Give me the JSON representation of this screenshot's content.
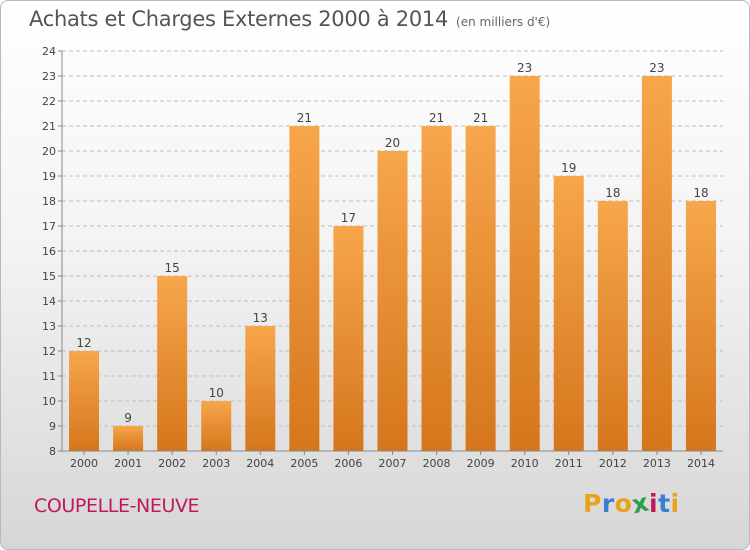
{
  "header": {
    "title": "Achats et Charges Externes 2000 à 2014",
    "subtitle": "(en milliers d'€)"
  },
  "footer": {
    "city": "COUPELLE-NEUVE",
    "brand": "Proxiti",
    "brand_letters": [
      "P",
      "r",
      "o",
      "x",
      "i",
      "t",
      "i"
    ],
    "brand_colors": [
      "#e8a317",
      "#3a7fd5",
      "#e8a317",
      "#2e9e4f",
      "#c2185b",
      "#3a7fd5",
      "#e8a317"
    ]
  },
  "colors": {
    "bar_top": "#f7a64c",
    "bar_bottom": "#d5761c",
    "grid": "#bdbdbd",
    "axis": "#888888",
    "title_color": "#555555",
    "city_color": "#c2185b"
  },
  "chart_data": {
    "type": "bar",
    "title": "Achats et Charges Externes 2000 à 2014",
    "subtitle": "(en milliers d'€)",
    "categories": [
      "2000",
      "2001",
      "2002",
      "2003",
      "2004",
      "2005",
      "2006",
      "2007",
      "2008",
      "2009",
      "2010",
      "2011",
      "2012",
      "2013",
      "2014"
    ],
    "values": [
      12,
      9,
      15,
      10,
      13,
      21,
      17,
      20,
      21,
      21,
      23,
      19,
      18,
      23,
      18
    ],
    "ylim": [
      8,
      24
    ],
    "yticks": [
      8,
      9,
      10,
      11,
      12,
      13,
      14,
      15,
      16,
      17,
      18,
      19,
      20,
      21,
      22,
      23,
      24
    ],
    "xlabel": "",
    "ylabel": "",
    "grid": true,
    "legend": "none"
  }
}
